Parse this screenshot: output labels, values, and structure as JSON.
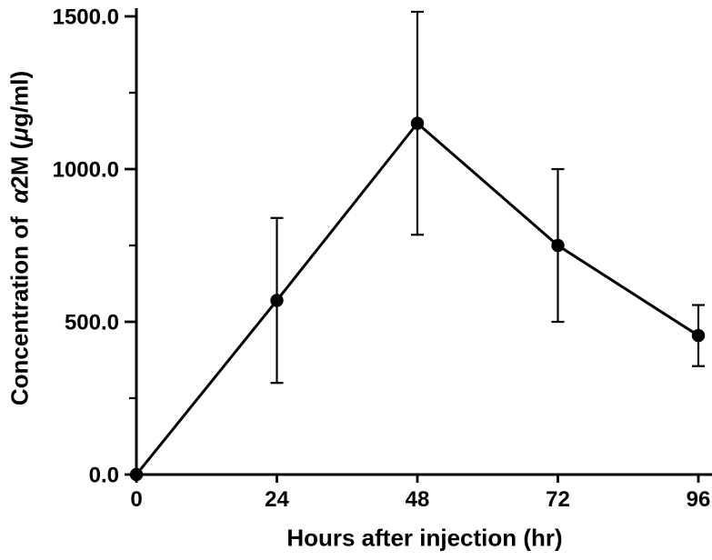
{
  "figure": {
    "background": "#ffffff",
    "ink_color": "#000000"
  },
  "chart_data": {
    "type": "line",
    "title": "",
    "xlabel": "Hours after injection (hr)",
    "ylabel": "Concentration of α2M (μg/ml)",
    "ylabel_parts": {
      "before": "Concentration of  ",
      "alpha": "α",
      "mid": "2M (",
      "mu": "μ",
      "after": "g/ml)"
    },
    "series": [
      {
        "name": "alpha-2M concentration",
        "x": [
          0,
          24,
          48,
          72,
          96
        ],
        "y": [
          0,
          570,
          1150,
          750,
          455
        ],
        "y_err": [
          0,
          270,
          365,
          250,
          100
        ],
        "marker": "filled-circle",
        "color": "#000000"
      }
    ],
    "x_ticks": {
      "values": [
        0,
        24,
        48,
        72,
        96
      ],
      "labels": [
        "0",
        "24",
        "48",
        "72",
        "96"
      ]
    },
    "y_ticks": {
      "values": [
        0,
        500,
        1000,
        1500
      ],
      "labels": [
        "0.0",
        "500.0",
        "1000.0",
        "1500.0"
      ]
    },
    "y_minor_ticks": [
      250,
      750,
      1250
    ],
    "xlim": [
      0,
      96
    ],
    "ylim": [
      0,
      1500
    ],
    "grid": false,
    "legend": "none",
    "error_bars": "symmetric, capped"
  }
}
